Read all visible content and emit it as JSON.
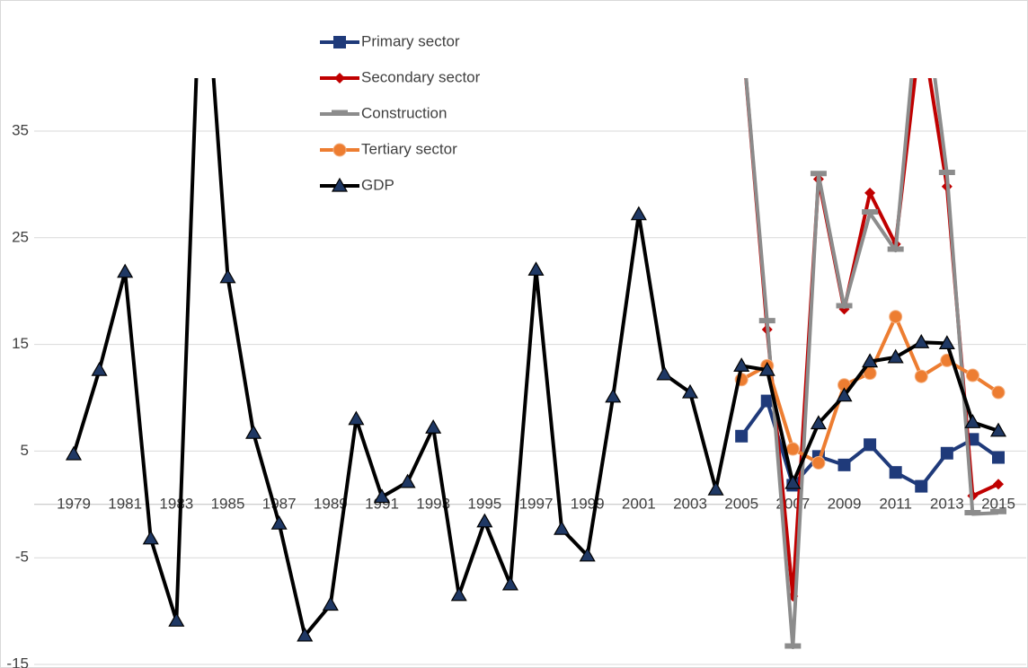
{
  "chart_data": {
    "type": "line",
    "categories": [
      "1979",
      null,
      "1981",
      null,
      "1983",
      null,
      "1985",
      null,
      "1987",
      null,
      "1989",
      null,
      "1991",
      null,
      "1993",
      null,
      "1995",
      null,
      "1997",
      null,
      "1999",
      null,
      "2001",
      null,
      "2003",
      null,
      "2005",
      null,
      "2007",
      null,
      "2009",
      null,
      "2011",
      null,
      "2013",
      null,
      "2015"
    ],
    "ylim": [
      -15,
      40
    ],
    "yticks": [
      -15,
      -5,
      5,
      15,
      25,
      35
    ],
    "grid": true,
    "legend": "top",
    "series": [
      {
        "name": "Primary sector",
        "color": "#1f3a7a",
        "marker": "square",
        "values": [
          null,
          null,
          null,
          null,
          null,
          null,
          null,
          null,
          null,
          null,
          null,
          null,
          null,
          null,
          null,
          null,
          null,
          null,
          null,
          null,
          null,
          null,
          null,
          null,
          null,
          null,
          6.4,
          9.7,
          1.8,
          4.5,
          3.7,
          5.6,
          3.0,
          1.7,
          4.8,
          6.1,
          4.4
        ]
      },
      {
        "name": "Secondary sector",
        "color": "#c00000",
        "marker": "diamond",
        "values": [
          null,
          null,
          null,
          null,
          null,
          null,
          null,
          null,
          null,
          null,
          null,
          null,
          null,
          null,
          null,
          null,
          null,
          null,
          null,
          null,
          null,
          null,
          null,
          null,
          null,
          null,
          45,
          16.4,
          -8.6,
          30.5,
          18.3,
          29.2,
          24.4,
          45,
          29.8,
          0.8,
          1.9
        ]
      },
      {
        "name": "Construction",
        "color": "#8c8c8c",
        "marker": "dash",
        "values": [
          null,
          null,
          null,
          null,
          null,
          null,
          null,
          null,
          null,
          null,
          null,
          null,
          null,
          null,
          null,
          null,
          null,
          null,
          null,
          null,
          null,
          null,
          null,
          null,
          null,
          null,
          45,
          17.1,
          -13.4,
          30.9,
          18.5,
          27.3,
          23.8,
          50,
          31.0,
          -0.9,
          -0.8
        ]
      },
      {
        "name": "Tertiary sector",
        "color": "#ed7d31",
        "marker": "circle",
        "values": [
          null,
          null,
          null,
          null,
          null,
          null,
          null,
          null,
          null,
          null,
          null,
          null,
          null,
          null,
          null,
          null,
          null,
          null,
          null,
          null,
          null,
          null,
          null,
          null,
          null,
          null,
          11.7,
          13.0,
          5.2,
          3.9,
          11.2,
          12.3,
          17.6,
          12.0,
          13.5,
          12.1,
          10.5
        ]
      },
      {
        "name": "GDP",
        "color": "#000000",
        "marker": "triangle",
        "marker_color": "#1f3864",
        "values": [
          4.7,
          12.6,
          21.8,
          -3.2,
          -10.9,
          55,
          21.3,
          6.7,
          -1.8,
          -12.3,
          -9.4,
          8.0,
          0.7,
          2.1,
          7.2,
          -8.5,
          -1.6,
          -7.5,
          22.0,
          -2.3,
          -4.8,
          10.1,
          27.2,
          12.2,
          10.5,
          1.4,
          13.0,
          12.6,
          2.0,
          7.6,
          10.2,
          13.4,
          13.8,
          15.2,
          15.1,
          7.7,
          6.9
        ]
      }
    ]
  }
}
